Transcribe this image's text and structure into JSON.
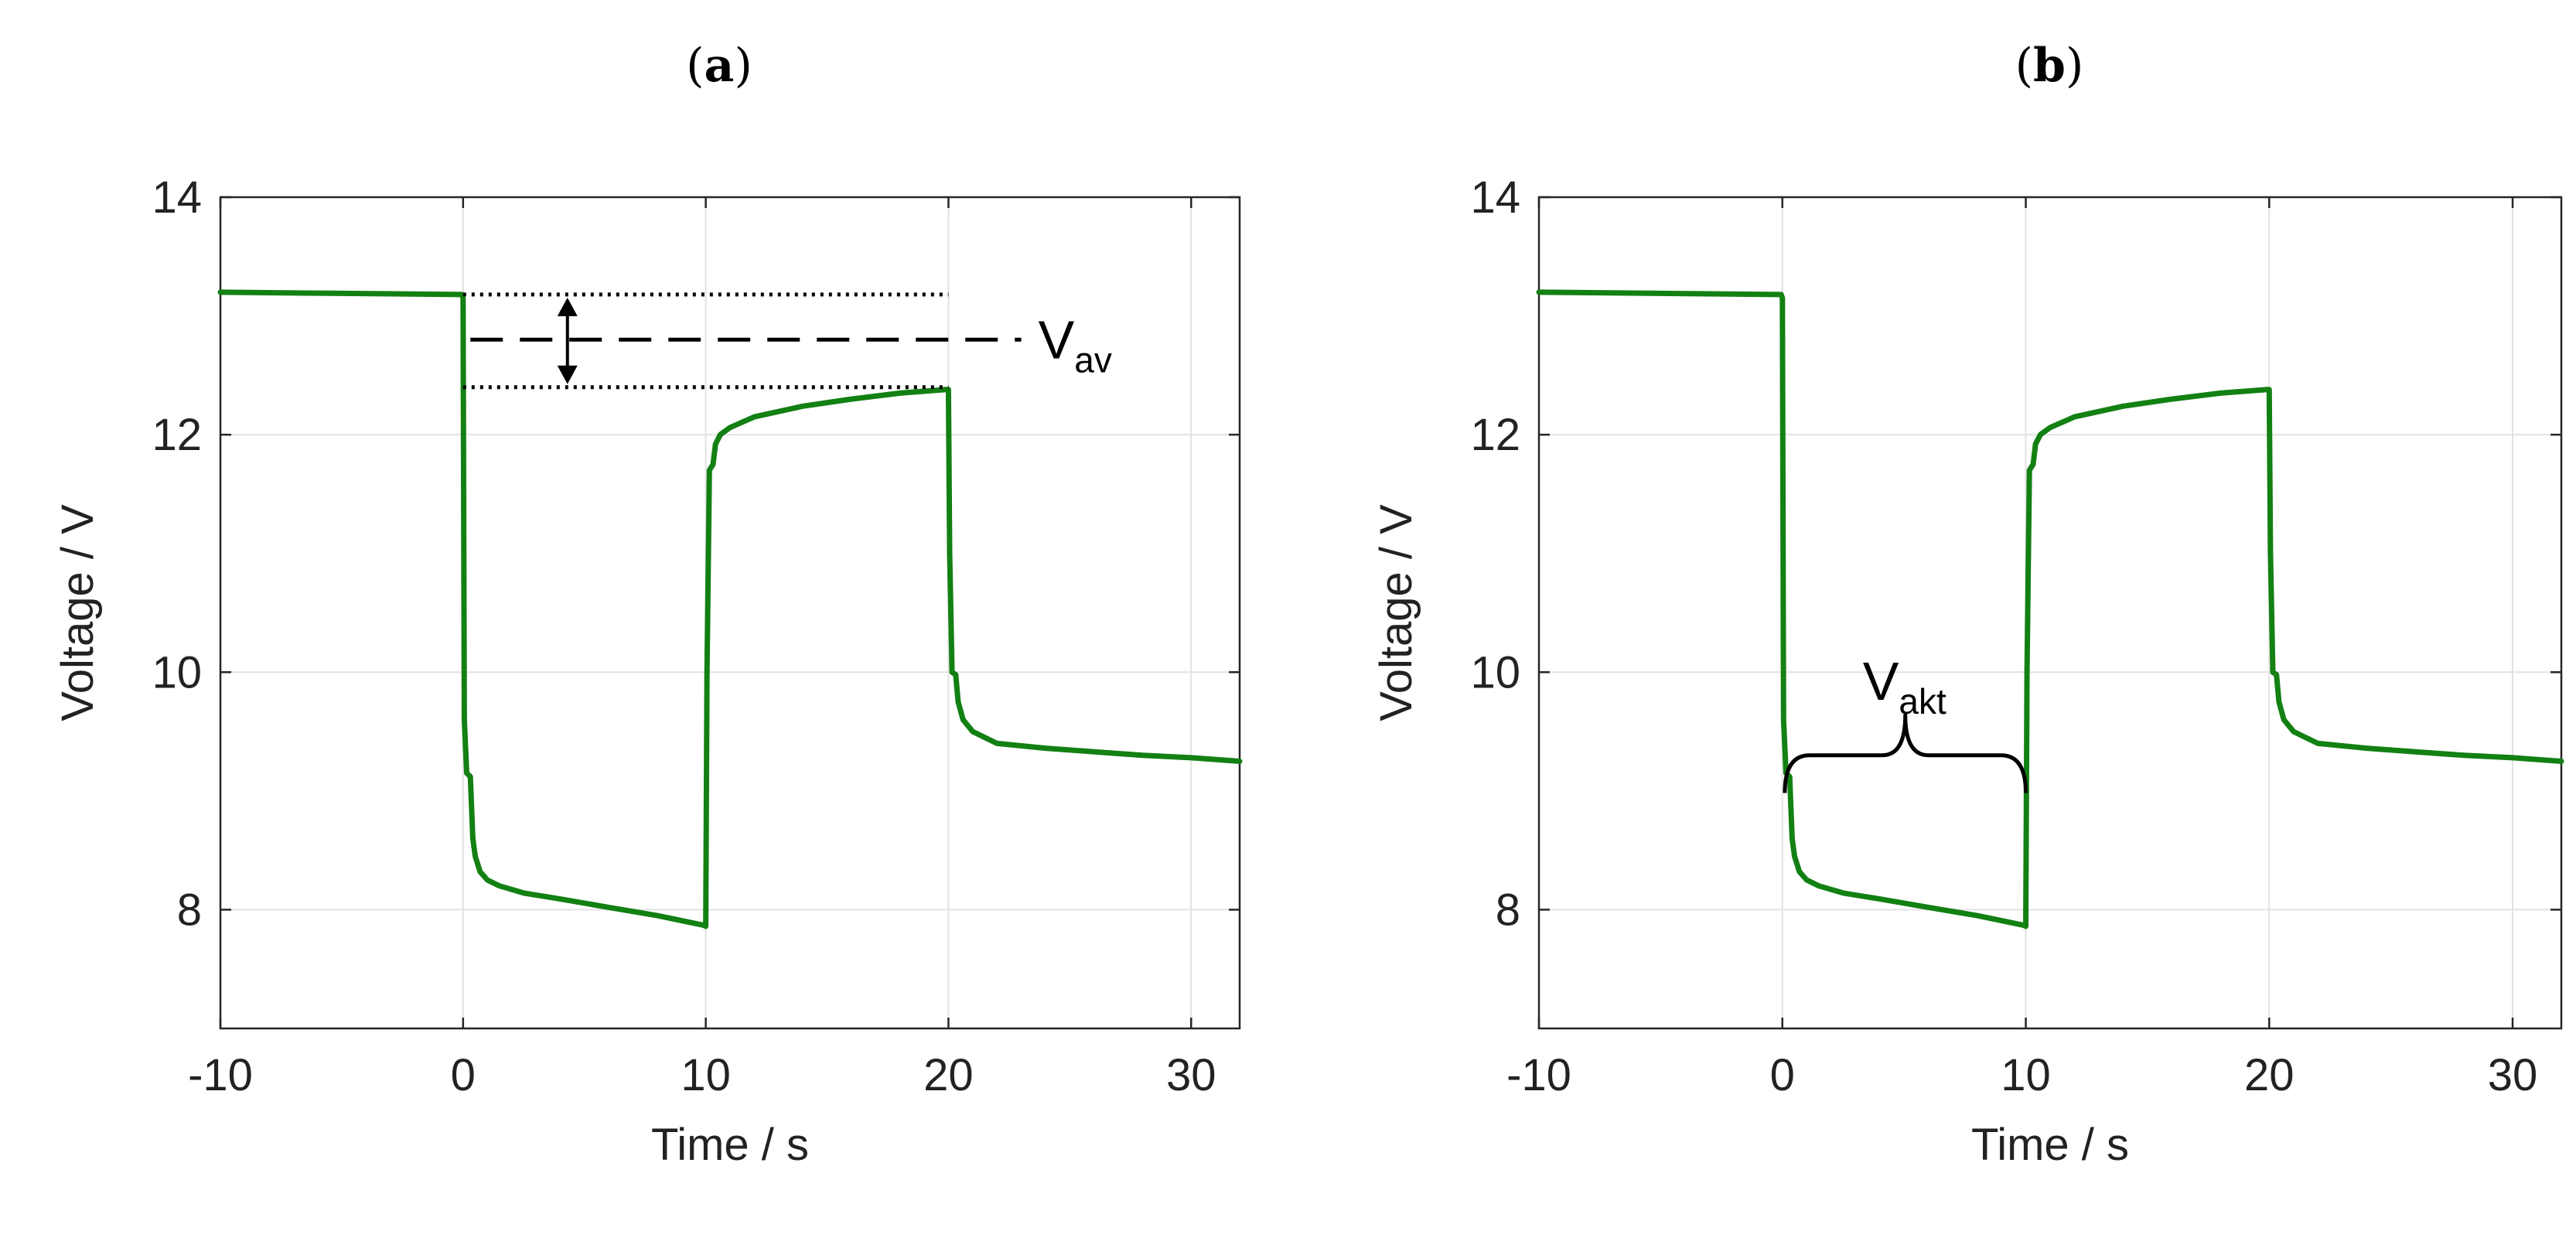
{
  "chart_data": [
    {
      "panel_label": "a",
      "type": "line",
      "xlabel": "Time / s",
      "ylabel": "Voltage / V",
      "xlim": [
        -10,
        32
      ],
      "ylim": [
        7,
        14
      ],
      "xticks": [
        -10,
        0,
        10,
        20,
        30
      ],
      "yticks": [
        8,
        10,
        12,
        14
      ],
      "grid": true,
      "series": [
        {
          "name": "Voltage",
          "color": "#138013",
          "points": [
            [
              -10,
              13.2
            ],
            [
              -5,
              13.19
            ],
            [
              -0.05,
              13.18
            ],
            [
              0,
              13.15
            ],
            [
              0.05,
              9.6
            ],
            [
              0.15,
              9.15
            ],
            [
              0.3,
              9.12
            ],
            [
              0.4,
              8.6
            ],
            [
              0.5,
              8.45
            ],
            [
              0.7,
              8.32
            ],
            [
              1.0,
              8.25
            ],
            [
              1.5,
              8.2
            ],
            [
              2.5,
              8.14
            ],
            [
              4,
              8.09
            ],
            [
              6,
              8.02
            ],
            [
              8,
              7.95
            ],
            [
              9.9,
              7.87
            ],
            [
              10.0,
              7.86
            ],
            [
              10.05,
              10.0
            ],
            [
              10.15,
              11.7
            ],
            [
              10.3,
              11.75
            ],
            [
              10.4,
              11.92
            ],
            [
              10.6,
              12.0
            ],
            [
              11,
              12.06
            ],
            [
              12,
              12.15
            ],
            [
              14,
              12.24
            ],
            [
              16,
              12.3
            ],
            [
              18,
              12.35
            ],
            [
              19.9,
              12.38
            ],
            [
              20.0,
              12.38
            ],
            [
              20.05,
              11.0
            ],
            [
              20.15,
              10.0
            ],
            [
              20.3,
              9.98
            ],
            [
              20.4,
              9.75
            ],
            [
              20.6,
              9.6
            ],
            [
              21,
              9.5
            ],
            [
              22,
              9.4
            ],
            [
              24,
              9.36
            ],
            [
              26,
              9.33
            ],
            [
              28,
              9.3
            ],
            [
              30,
              9.28
            ],
            [
              32,
              9.25
            ]
          ]
        }
      ],
      "annotation": {
        "type": "amplitude",
        "label": "V",
        "subscript": "av",
        "y_upper": 13.18,
        "y_lower": 12.4,
        "y_mid": 12.8,
        "x_start": 0,
        "x_end": 20,
        "arrow_x": 4.3,
        "dash_x_start": 0.3,
        "dash_x_end": 23
      }
    },
    {
      "panel_label": "b",
      "type": "line",
      "xlabel": "Time / s",
      "ylabel": "Voltage / V",
      "xlim": [
        -10,
        32
      ],
      "ylim": [
        7,
        14
      ],
      "xticks": [
        -10,
        0,
        10,
        20,
        30
      ],
      "yticks": [
        8,
        10,
        12,
        14
      ],
      "grid": true,
      "series": [
        {
          "name": "Voltage",
          "color": "#138013",
          "points": [
            [
              -10,
              13.2
            ],
            [
              -5,
              13.19
            ],
            [
              -0.05,
              13.18
            ],
            [
              0,
              13.15
            ],
            [
              0.05,
              9.6
            ],
            [
              0.15,
              9.15
            ],
            [
              0.3,
              9.12
            ],
            [
              0.4,
              8.6
            ],
            [
              0.5,
              8.45
            ],
            [
              0.7,
              8.32
            ],
            [
              1.0,
              8.25
            ],
            [
              1.5,
              8.2
            ],
            [
              2.5,
              8.14
            ],
            [
              4,
              8.09
            ],
            [
              6,
              8.02
            ],
            [
              8,
              7.95
            ],
            [
              9.9,
              7.87
            ],
            [
              10.0,
              7.86
            ],
            [
              10.05,
              10.0
            ],
            [
              10.15,
              11.7
            ],
            [
              10.3,
              11.75
            ],
            [
              10.4,
              11.92
            ],
            [
              10.6,
              12.0
            ],
            [
              11,
              12.06
            ],
            [
              12,
              12.15
            ],
            [
              14,
              12.24
            ],
            [
              16,
              12.3
            ],
            [
              18,
              12.35
            ],
            [
              19.9,
              12.38
            ],
            [
              20.0,
              12.38
            ],
            [
              20.05,
              11.0
            ],
            [
              20.15,
              10.0
            ],
            [
              20.3,
              9.98
            ],
            [
              20.4,
              9.75
            ],
            [
              20.6,
              9.6
            ],
            [
              21,
              9.5
            ],
            [
              22,
              9.4
            ],
            [
              24,
              9.36
            ],
            [
              26,
              9.33
            ],
            [
              28,
              9.3
            ],
            [
              30,
              9.28
            ],
            [
              32,
              9.25
            ]
          ]
        }
      ],
      "annotation": {
        "type": "brace",
        "label": "V",
        "subscript": "akt",
        "x_start": 0.1,
        "x_end": 10,
        "y_base": 9.1,
        "y_mid": 9.3
      }
    }
  ]
}
